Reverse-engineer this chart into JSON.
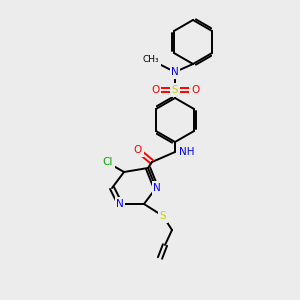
{
  "bg": "#ececec",
  "atom_colors": {
    "N": "#0000ff",
    "O": "#ff0000",
    "S": "#cccc00",
    "Cl": "#00aa00",
    "H": "#4a9999",
    "C": "#000000"
  },
  "bond_lw": 1.4,
  "font_size": 7.5
}
